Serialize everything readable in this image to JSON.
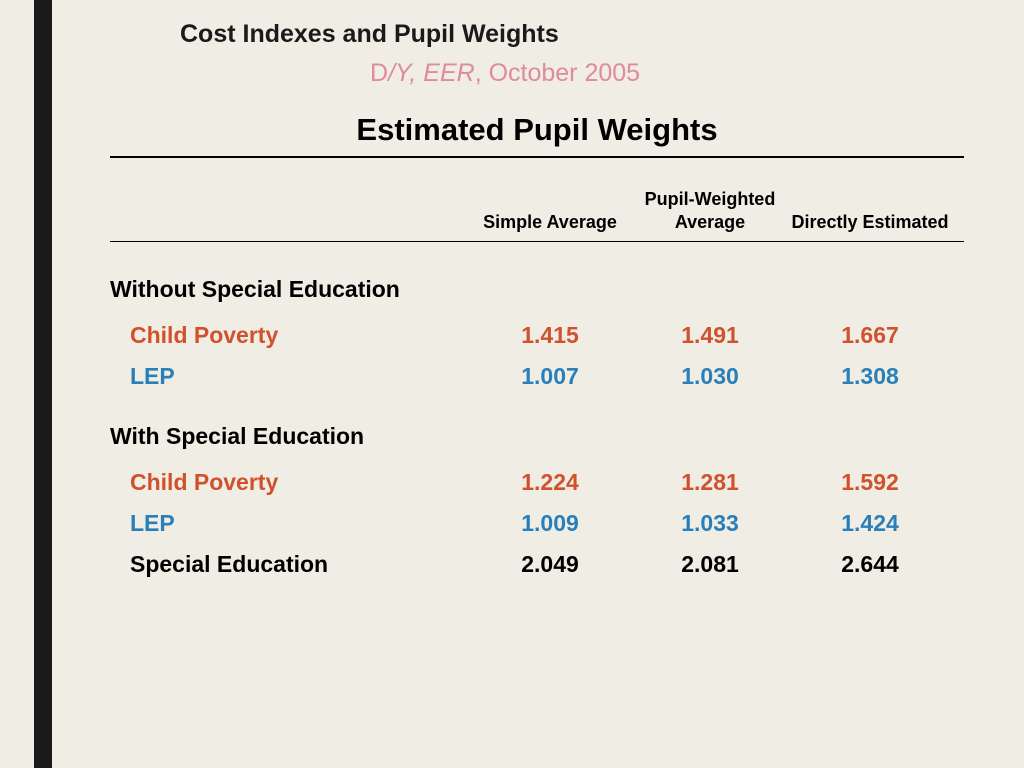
{
  "header": {
    "title": "Cost Indexes and Pupil Weights",
    "subtitle_plain1": "D",
    "subtitle_italic": "/Y, EER",
    "subtitle_plain2": ", October 2005"
  },
  "main_title": "Estimated Pupil Weights",
  "columns": {
    "c1": "Simple Average",
    "c2": "Pupil-Weighted Average",
    "c3": "Directly Estimated"
  },
  "colors": {
    "poverty": "#d1512d",
    "lep": "#2a7fb8",
    "plain": "#000000"
  },
  "sections": [
    {
      "label": "Without Special Education",
      "rows": [
        {
          "label": "Child Poverty",
          "color_key": "poverty",
          "v1": "1.415",
          "v2": "1.491",
          "v3": "1.667"
        },
        {
          "label": "LEP",
          "color_key": "lep",
          "v1": "1.007",
          "v2": "1.030",
          "v3": "1.308"
        }
      ]
    },
    {
      "label": "With Special Education",
      "rows": [
        {
          "label": "Child Poverty",
          "color_key": "poverty",
          "v1": "1.224",
          "v2": "1.281",
          "v3": "1.592"
        },
        {
          "label": "LEP",
          "color_key": "lep",
          "v1": "1.009",
          "v2": "1.033",
          "v3": "1.424"
        },
        {
          "label": "Special Education",
          "color_key": "plain",
          "v1": "2.049",
          "v2": "2.081",
          "v3": "2.644"
        }
      ]
    }
  ]
}
